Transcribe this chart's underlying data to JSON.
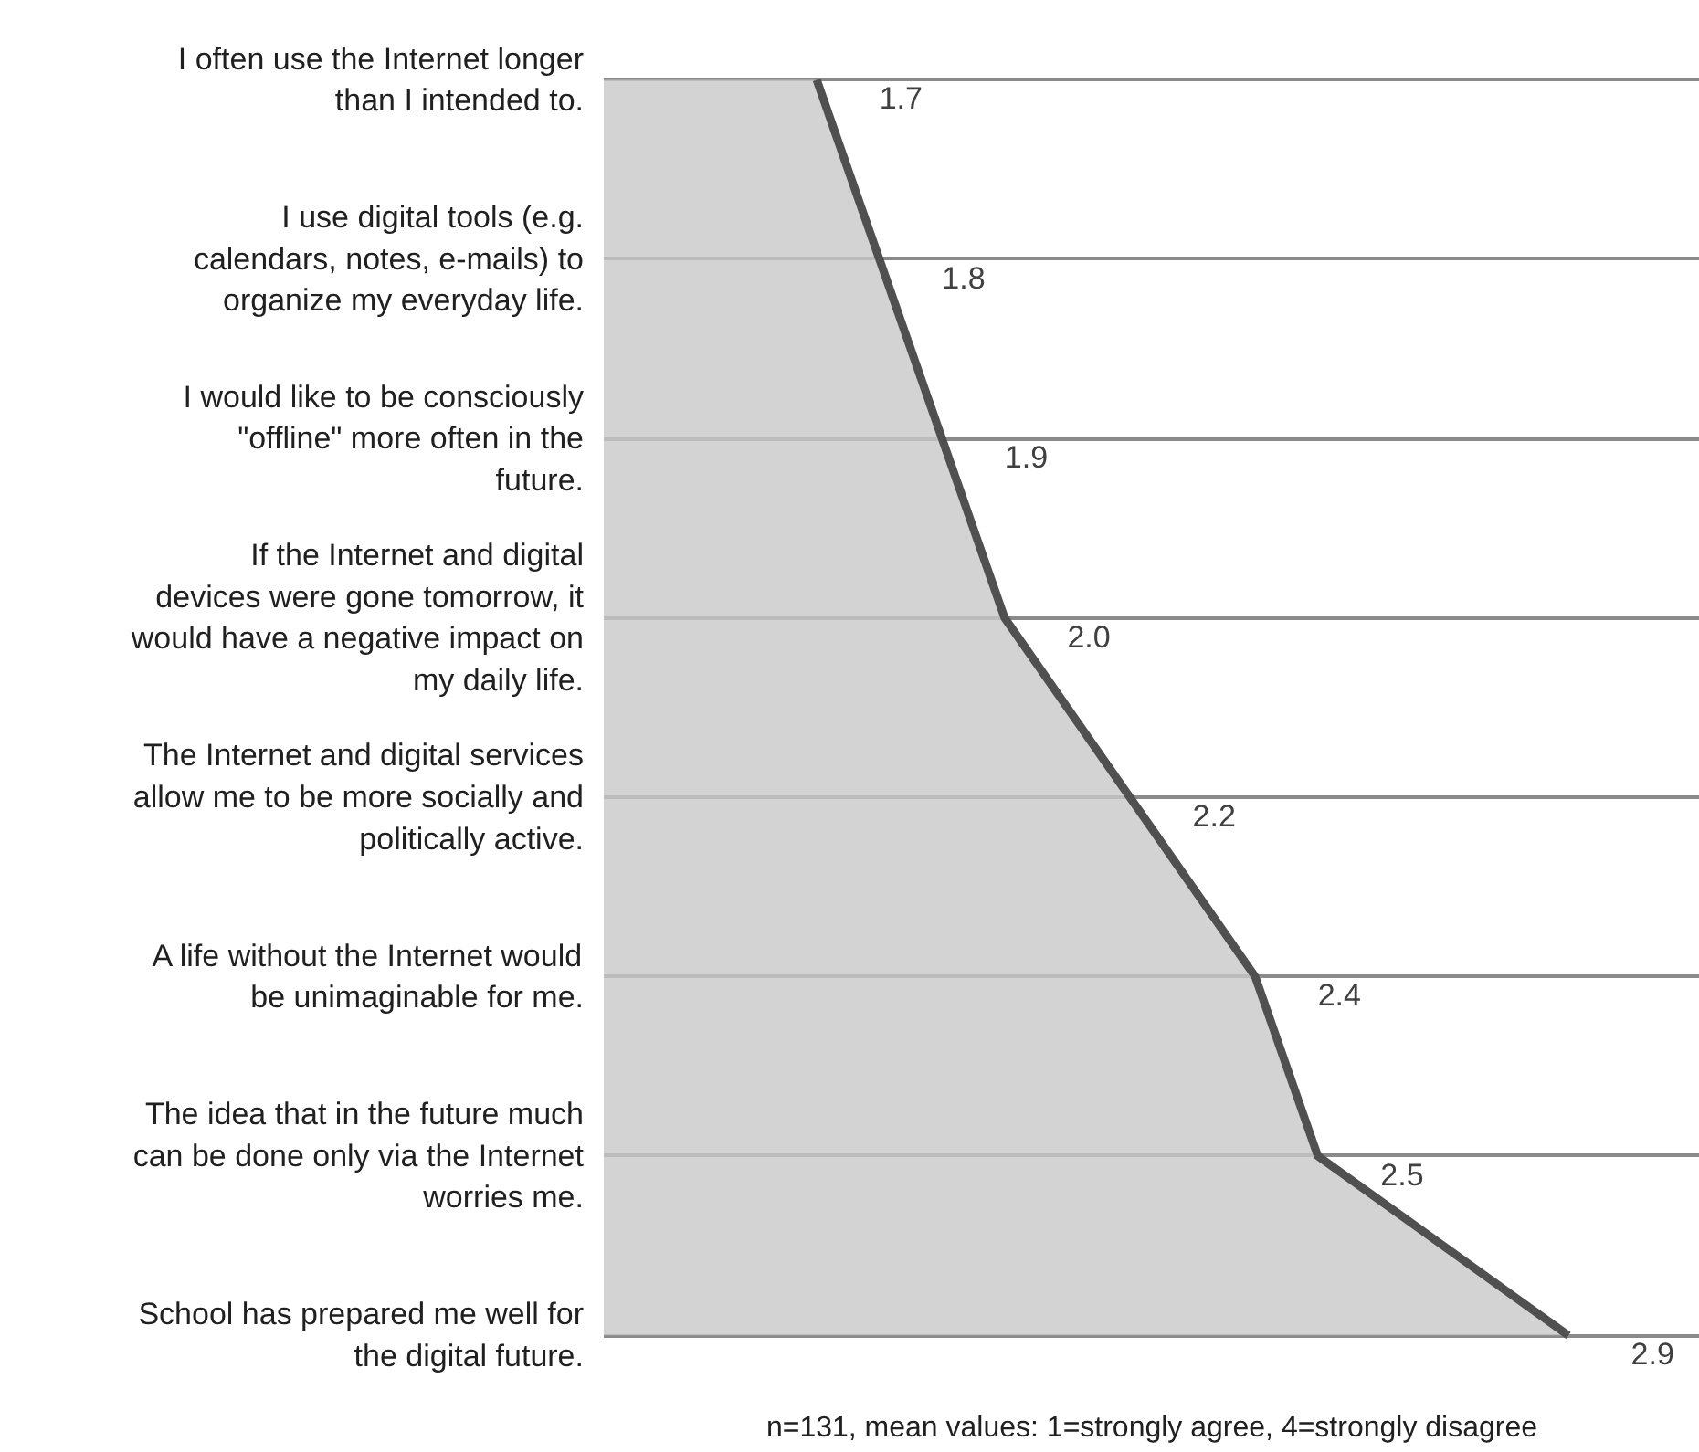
{
  "chart_data": {
    "type": "area",
    "orientation": "horizontal",
    "categories": [
      "I often use the Internet longer than I intended to.",
      "I use digital tools (e.g. calendars, notes, e-mails) to organize my everyday life.",
      "I would like to be consciously \"offline\" more often in the future.",
      "If the Internet and digital devices were gone tomorrow, it would have a negative impact on my daily life.",
      "The Internet and digital services allow me to be more socially and politically active.",
      "A life without the Internet would be unimaginable for me.",
      "The idea that in the future much can be done only via the Internet worries me.",
      "School has prepared me well for the digital future."
    ],
    "values": [
      1.7,
      1.8,
      1.9,
      2.0,
      2.2,
      2.4,
      2.5,
      2.9
    ],
    "color": "#c8c8c8",
    "xlim": [
      1.36,
      3.11
    ],
    "grid": "y",
    "value_labels": [
      "1.7",
      "1.8",
      "1.9",
      "2.0",
      "2.2",
      "2.4",
      "2.5",
      "2.9"
    ],
    "tick_labels": "y",
    "annotations": [
      "n=131, mean values: 1=strongly agree, 4=strongly disagree"
    ]
  }
}
